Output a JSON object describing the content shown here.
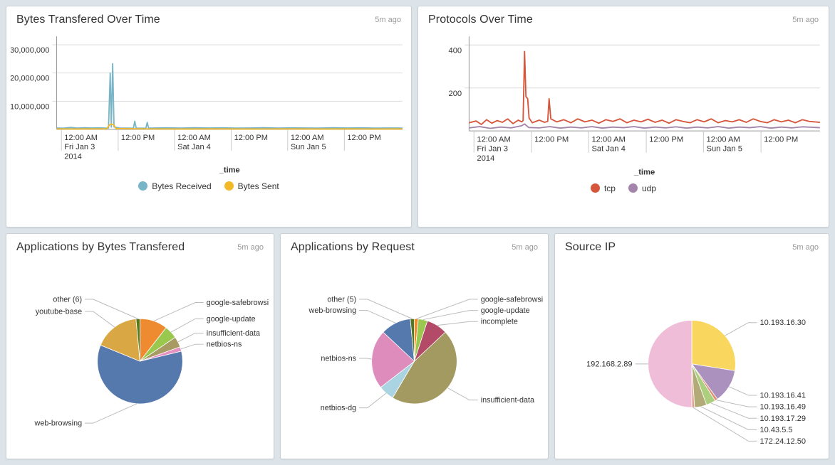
{
  "page": {
    "background": "#dce4e9"
  },
  "chart_data": [
    {
      "type": "line",
      "title": "Bytes Transfered Over Time",
      "updated": "5m ago",
      "xlabel": "_time",
      "ylim": [
        0,
        33000000
      ],
      "grid": "horizontal",
      "legend_position": "bottom",
      "yticks": [
        {
          "value": 10000000,
          "label": "10,000,000"
        },
        {
          "value": 20000000,
          "label": "20,000,000"
        },
        {
          "value": 30000000,
          "label": "30,000,000"
        }
      ],
      "xticks": [
        {
          "pos": 0.014,
          "lines": [
            "12:00 AM",
            "Fri Jan 3",
            "2014"
          ]
        },
        {
          "pos": 0.178,
          "lines": [
            "12:00 PM"
          ]
        },
        {
          "pos": 0.341,
          "lines": [
            "12:00 AM",
            "Sat Jan 4"
          ]
        },
        {
          "pos": 0.505,
          "lines": [
            "12:00 PM"
          ]
        },
        {
          "pos": 0.668,
          "lines": [
            "12:00 AM",
            "Sun Jan 5"
          ]
        },
        {
          "pos": 0.832,
          "lines": [
            "12:00 PM"
          ]
        }
      ],
      "series": [
        {
          "name": "Bytes Received",
          "color": "#78b5c6",
          "points": [
            [
              0,
              500000
            ],
            [
              0.02,
              420000
            ],
            [
              0.04,
              680000
            ],
            [
              0.06,
              450000
            ],
            [
              0.08,
              600000
            ],
            [
              0.1,
              500000
            ],
            [
              0.12,
              560000
            ],
            [
              0.14,
              460000
            ],
            [
              0.15,
              520000
            ],
            [
              0.155,
              20000000
            ],
            [
              0.158,
              800000
            ],
            [
              0.162,
              23300000
            ],
            [
              0.166,
              900000
            ],
            [
              0.18,
              520000
            ],
            [
              0.2,
              460000
            ],
            [
              0.222,
              420000
            ],
            [
              0.226,
              2900000
            ],
            [
              0.23,
              420000
            ],
            [
              0.258,
              460000
            ],
            [
              0.262,
              2500000
            ],
            [
              0.266,
              460000
            ],
            [
              0.28,
              500000
            ],
            [
              0.32,
              560000
            ],
            [
              0.36,
              450000
            ],
            [
              0.4,
              600000
            ],
            [
              0.44,
              500000
            ],
            [
              0.48,
              560000
            ],
            [
              0.52,
              450000
            ],
            [
              0.56,
              510000
            ],
            [
              0.6,
              600000
            ],
            [
              0.64,
              460000
            ],
            [
              0.68,
              560000
            ],
            [
              0.72,
              500000
            ],
            [
              0.76,
              450000
            ],
            [
              0.8,
              600000
            ],
            [
              0.84,
              510000
            ],
            [
              0.88,
              560000
            ],
            [
              0.92,
              450000
            ],
            [
              0.96,
              510000
            ],
            [
              1,
              460000
            ]
          ]
        },
        {
          "name": "Bytes Sent",
          "color": "#f2b827",
          "points": [
            [
              0,
              200000
            ],
            [
              0.05,
              150000
            ],
            [
              0.1,
              180000
            ],
            [
              0.145,
              210000
            ],
            [
              0.152,
              1500000
            ],
            [
              0.158,
              1900000
            ],
            [
              0.165,
              1600000
            ],
            [
              0.172,
              300000
            ],
            [
              0.25,
              200000
            ],
            [
              0.35,
              160000
            ],
            [
              0.45,
              190000
            ],
            [
              0.55,
              150000
            ],
            [
              0.65,
              190000
            ],
            [
              0.75,
              150000
            ],
            [
              0.85,
              190000
            ],
            [
              0.95,
              150000
            ],
            [
              1,
              170000
            ]
          ]
        }
      ]
    },
    {
      "type": "line",
      "title": "Protocols Over Time",
      "updated": "5m ago",
      "xlabel": "_time",
      "ylim": [
        0,
        440
      ],
      "grid": "horizontal",
      "legend_position": "bottom",
      "yticks": [
        {
          "value": 200,
          "label": "200"
        },
        {
          "value": 400,
          "label": "400"
        }
      ],
      "xticks": [
        {
          "pos": 0.014,
          "lines": [
            "12:00 AM",
            "Fri Jan 3",
            "2014"
          ]
        },
        {
          "pos": 0.178,
          "lines": [
            "12:00 PM"
          ]
        },
        {
          "pos": 0.341,
          "lines": [
            "12:00 AM",
            "Sat Jan 4"
          ]
        },
        {
          "pos": 0.505,
          "lines": [
            "12:00 PM"
          ]
        },
        {
          "pos": 0.668,
          "lines": [
            "12:00 AM",
            "Sun Jan 5"
          ]
        },
        {
          "pos": 0.832,
          "lines": [
            "12:00 PM"
          ]
        }
      ],
      "series": [
        {
          "name": "tcp",
          "color": "#d6563c",
          "points": [
            [
              0,
              38
            ],
            [
              0.02,
              46
            ],
            [
              0.035,
              30
            ],
            [
              0.05,
              52
            ],
            [
              0.065,
              36
            ],
            [
              0.08,
              48
            ],
            [
              0.095,
              40
            ],
            [
              0.11,
              56
            ],
            [
              0.125,
              34
            ],
            [
              0.14,
              50
            ],
            [
              0.15,
              42
            ],
            [
              0.154,
              48
            ],
            [
              0.158,
              370
            ],
            [
              0.162,
              160
            ],
            [
              0.167,
              150
            ],
            [
              0.171,
              60
            ],
            [
              0.18,
              38
            ],
            [
              0.2,
              50
            ],
            [
              0.215,
              40
            ],
            [
              0.224,
              44
            ],
            [
              0.228,
              150
            ],
            [
              0.233,
              56
            ],
            [
              0.25,
              42
            ],
            [
              0.27,
              52
            ],
            [
              0.29,
              38
            ],
            [
              0.31,
              56
            ],
            [
              0.33,
              42
            ],
            [
              0.35,
              50
            ],
            [
              0.37,
              36
            ],
            [
              0.39,
              52
            ],
            [
              0.41,
              44
            ],
            [
              0.43,
              56
            ],
            [
              0.45,
              38
            ],
            [
              0.47,
              50
            ],
            [
              0.49,
              42
            ],
            [
              0.51,
              54
            ],
            [
              0.53,
              40
            ],
            [
              0.55,
              50
            ],
            [
              0.57,
              36
            ],
            [
              0.59,
              52
            ],
            [
              0.61,
              44
            ],
            [
              0.63,
              38
            ],
            [
              0.65,
              52
            ],
            [
              0.67,
              42
            ],
            [
              0.69,
              56
            ],
            [
              0.71,
              38
            ],
            [
              0.73,
              48
            ],
            [
              0.75,
              42
            ],
            [
              0.77,
              52
            ],
            [
              0.79,
              40
            ],
            [
              0.81,
              56
            ],
            [
              0.83,
              44
            ],
            [
              0.85,
              38
            ],
            [
              0.87,
              52
            ],
            [
              0.89,
              42
            ],
            [
              0.91,
              50
            ],
            [
              0.93,
              38
            ],
            [
              0.95,
              52
            ],
            [
              0.97,
              44
            ],
            [
              1,
              40
            ]
          ]
        },
        {
          "name": "udp",
          "color": "#a584ab",
          "points": [
            [
              0,
              14
            ],
            [
              0.03,
              20
            ],
            [
              0.06,
              12
            ],
            [
              0.09,
              18
            ],
            [
              0.12,
              14
            ],
            [
              0.15,
              24
            ],
            [
              0.158,
              32
            ],
            [
              0.17,
              16
            ],
            [
              0.2,
              14
            ],
            [
              0.23,
              20
            ],
            [
              0.26,
              13
            ],
            [
              0.29,
              18
            ],
            [
              0.32,
              14
            ],
            [
              0.35,
              20
            ],
            [
              0.38,
              13
            ],
            [
              0.41,
              18
            ],
            [
              0.44,
              15
            ],
            [
              0.47,
              20
            ],
            [
              0.5,
              13
            ],
            [
              0.53,
              18
            ],
            [
              0.56,
              14
            ],
            [
              0.59,
              19
            ],
            [
              0.62,
              13
            ],
            [
              0.65,
              18
            ],
            [
              0.68,
              14
            ],
            [
              0.71,
              20
            ],
            [
              0.74,
              13
            ],
            [
              0.77,
              18
            ],
            [
              0.8,
              15
            ],
            [
              0.83,
              20
            ],
            [
              0.86,
              13
            ],
            [
              0.89,
              18
            ],
            [
              0.92,
              14
            ],
            [
              0.95,
              19
            ],
            [
              1,
              15
            ]
          ]
        }
      ]
    },
    {
      "type": "pie",
      "title": "Applications by Bytes Transfered",
      "updated": "5m ago",
      "slices": [
        {
          "label": "google-safebrowsing",
          "value": 10.5,
          "color": "#ee8b31"
        },
        {
          "label": "google-update",
          "value": 5.0,
          "color": "#9ac74e"
        },
        {
          "label": "insufficient-data",
          "value": 4.0,
          "color": "#a79a62"
        },
        {
          "label": "netbios-ns",
          "value": 1.7,
          "color": "#e490c0"
        },
        {
          "label": "web-browsing",
          "value": 60.0,
          "color": "#5679ad"
        },
        {
          "label": "youtube-base",
          "value": 17.3,
          "color": "#d9a845"
        },
        {
          "label": "other (6)",
          "value": 1.5,
          "color": "#55771e"
        }
      ]
    },
    {
      "type": "pie",
      "title": "Applications by Request",
      "updated": "5m ago",
      "slices": [
        {
          "label": "google-safebrowsing",
          "value": 1.5,
          "color": "#ee8b31"
        },
        {
          "label": "google-update",
          "value": 3.5,
          "color": "#9ac74e"
        },
        {
          "label": "incomplete",
          "value": 8.0,
          "color": "#b34a67"
        },
        {
          "label": "insufficient-data",
          "value": 45.5,
          "color": "#a29a60"
        },
        {
          "label": "netbios-dg",
          "value": 6.0,
          "color": "#aad4e2"
        },
        {
          "label": "netbios-ns",
          "value": 22.5,
          "color": "#dd8cbb"
        },
        {
          "label": "web-browsing",
          "value": 11.5,
          "color": "#5679ad"
        },
        {
          "label": "other (5)",
          "value": 1.5,
          "color": "#55771e"
        }
      ]
    },
    {
      "type": "pie",
      "title": "Source IP",
      "updated": "5m ago",
      "slices": [
        {
          "label": "10.193.16.30",
          "value": 27.5,
          "color": "#f9d65d"
        },
        {
          "label": "10.193.16.41",
          "value": 12.5,
          "color": "#ab91bd"
        },
        {
          "label": "10.193.16.49",
          "value": 1.0,
          "color": "#dc8f74"
        },
        {
          "label": "10.193.17.29",
          "value": 3.5,
          "color": "#abce7f"
        },
        {
          "label": "10.43.5.5",
          "value": 4.5,
          "color": "#b3ab77"
        },
        {
          "label": "172.24.12.50",
          "value": 1.0,
          "color": "#e0a392"
        },
        {
          "label": "192.168.2.89",
          "value": 50.0,
          "color": "#f0bdd9"
        }
      ]
    }
  ]
}
